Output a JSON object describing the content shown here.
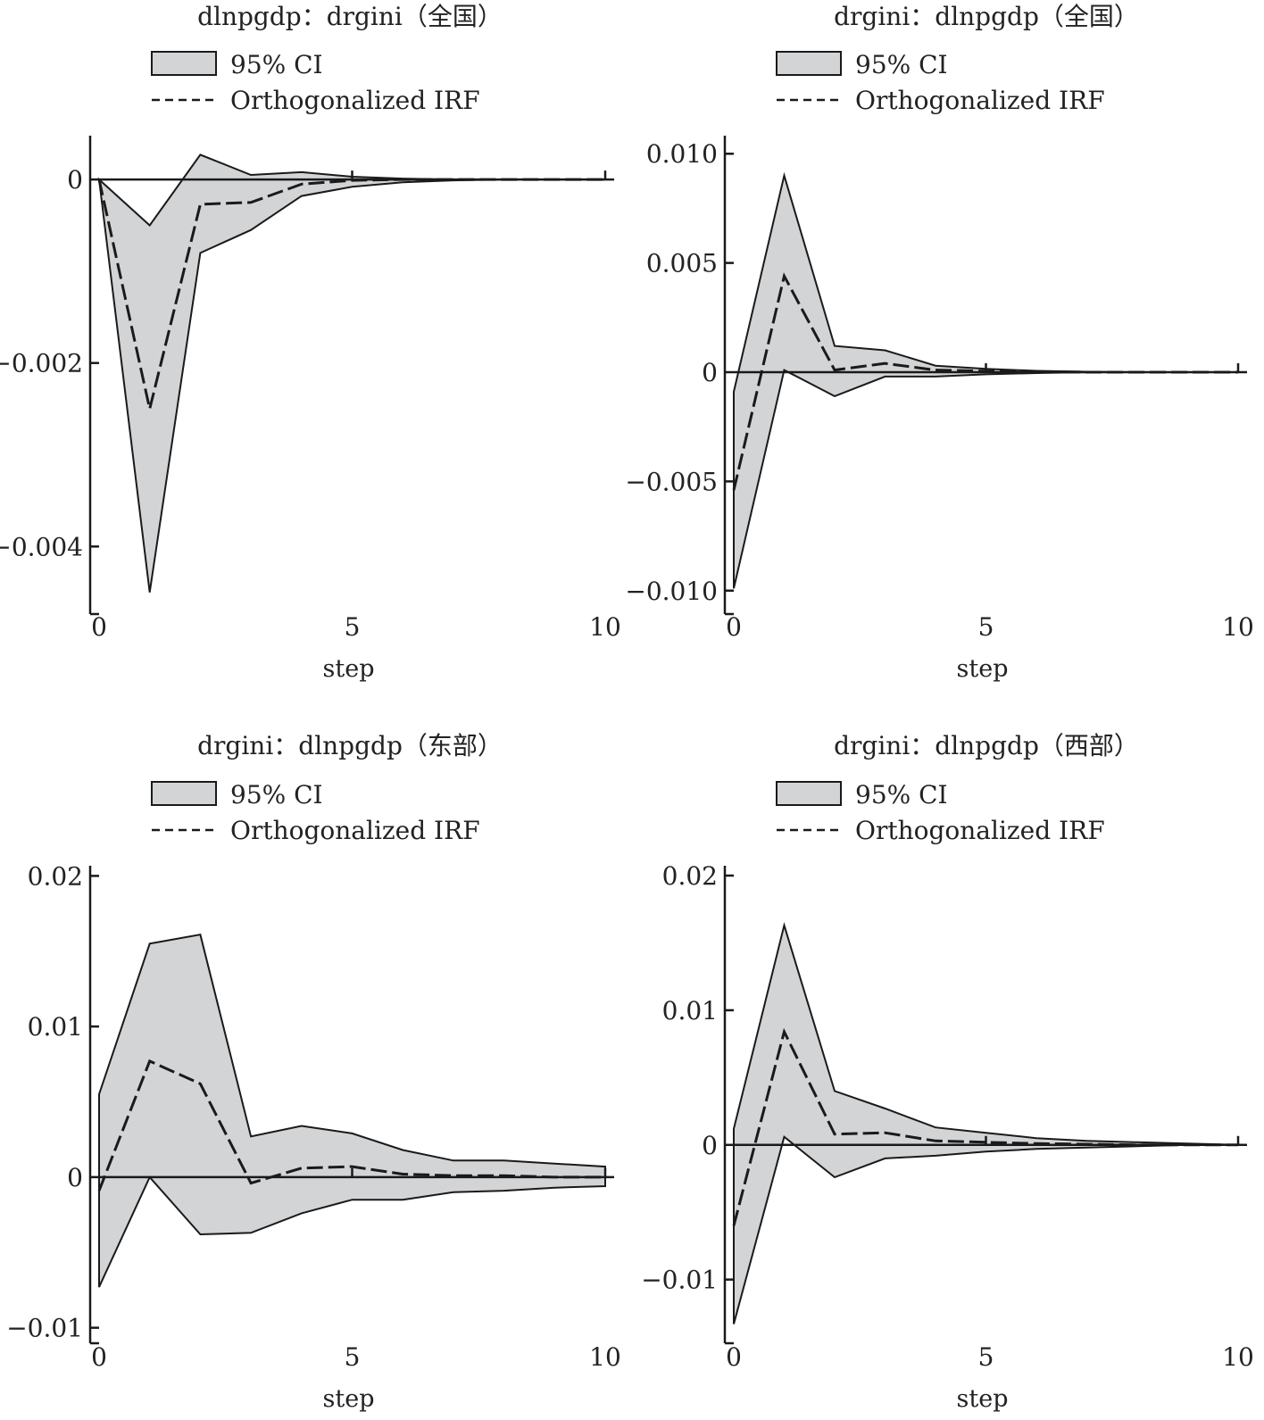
{
  "chart_data": [
    {
      "type": "area",
      "title": "dlnpgdp：drgini（全国）",
      "xlabel": "step",
      "ylabel": "",
      "legend": {
        "ci_label": "95% CI",
        "line_label": "Orthogonalized IRF",
        "placement": "top-left"
      },
      "xlim": [
        0,
        10
      ],
      "ylim": [
        -0.0046,
        0.0004
      ],
      "xticks": [
        0,
        5,
        10
      ],
      "xtick_labels": [
        "0",
        "5",
        "10"
      ],
      "yticks": [
        0,
        -0.002,
        -0.004
      ],
      "ytick_labels": [
        "0",
        "−0.002",
        "−0.004"
      ],
      "x": [
        0,
        1,
        2,
        3,
        4,
        5,
        6,
        7,
        8,
        9,
        10
      ],
      "series": [
        {
          "name": "Orthogonalized IRF",
          "values": [
            0,
            -0.0025,
            -0.00027,
            -0.00025,
            -5e-05,
            -1e-05,
            0,
            0,
            0,
            0,
            0
          ]
        },
        {
          "name": "95% CI",
          "lower": [
            0,
            -0.0045,
            -0.0008,
            -0.00055,
            -0.00018,
            -8e-05,
            -3e-05,
            -1e-05,
            0,
            0,
            0
          ],
          "upper": [
            0,
            -0.0005,
            0.00027,
            5e-05,
            8e-05,
            3e-05,
            1e-05,
            0,
            0,
            0,
            0
          ]
        }
      ]
    },
    {
      "type": "area",
      "title": "drgini：dlnpgdp（全国）",
      "xlabel": "step",
      "ylabel": "",
      "legend": {
        "ci_label": "95% CI",
        "line_label": "Orthogonalized IRF",
        "placement": "top-left"
      },
      "xlim": [
        0,
        10
      ],
      "ylim": [
        -0.0105,
        0.0105
      ],
      "xticks": [
        0,
        5,
        10
      ],
      "xtick_labels": [
        "0",
        "5",
        "10"
      ],
      "yticks": [
        0.01,
        0.005,
        0,
        -0.005,
        -0.01
      ],
      "ytick_labels": [
        "0.010",
        "0.005",
        "0",
        "−0.005",
        "−0.010"
      ],
      "x": [
        0,
        1,
        2,
        3,
        4,
        5,
        6,
        7,
        8,
        9,
        10
      ],
      "series": [
        {
          "name": "Orthogonalized IRF",
          "values": [
            -0.0054,
            0.0044,
            0.0001,
            0.0004,
            0.0001,
            5e-05,
            2e-05,
            0,
            0,
            0,
            0
          ]
        },
        {
          "name": "95% CI",
          "lower": [
            -0.0099,
            0.0001,
            -0.0011,
            -0.0002,
            -0.0002,
            -0.0001,
            -4e-05,
            0,
            0,
            0,
            0
          ],
          "upper": [
            -0.0009,
            0.009,
            0.0012,
            0.001,
            0.0003,
            0.00015,
            6e-05,
            2e-05,
            0,
            0,
            0
          ]
        }
      ]
    },
    {
      "type": "area",
      "title": "drgini：dlnpgdp（东部）",
      "xlabel": "step",
      "ylabel": "",
      "legend": {
        "ci_label": "95% CI",
        "line_label": "Orthogonalized IRF",
        "placement": "top-left"
      },
      "xlim": [
        0,
        10
      ],
      "ylim": [
        -0.0102,
        0.0202
      ],
      "xticks": [
        0,
        5,
        10
      ],
      "xtick_labels": [
        "0",
        "5",
        "10"
      ],
      "yticks": [
        0.02,
        0.01,
        0,
        -0.01
      ],
      "ytick_labels": [
        "0.02",
        "0.01",
        "0",
        "−0.01"
      ],
      "x": [
        0,
        1,
        2,
        3,
        4,
        5,
        6,
        7,
        8,
        9,
        10
      ],
      "series": [
        {
          "name": "Orthogonalized IRF",
          "values": [
            -0.0009,
            0.0077,
            0.0062,
            -0.0004,
            0.0006,
            0.0007,
            0.0002,
            0.0001,
            0.0001,
            0,
            0
          ]
        },
        {
          "name": "95% CI",
          "lower": [
            -0.0073,
            0,
            -0.0038,
            -0.0037,
            -0.0024,
            -0.0015,
            -0.0015,
            -0.001,
            -0.0009,
            -0.0007,
            -0.0006
          ],
          "upper": [
            0.0055,
            0.0155,
            0.0161,
            0.0027,
            0.0034,
            0.0029,
            0.0018,
            0.0011,
            0.0011,
            0.0009,
            0.0007
          ]
        }
      ]
    },
    {
      "type": "area",
      "title": "drgini：dlnpgdp（西部）",
      "xlabel": "step",
      "ylabel": "",
      "legend": {
        "ci_label": "95% CI",
        "line_label": "Orthogonalized IRF",
        "placement": "top-left"
      },
      "xlim": [
        0,
        10
      ],
      "ylim": [
        -0.0138,
        0.0202
      ],
      "xticks": [
        0,
        5,
        10
      ],
      "xtick_labels": [
        "0",
        "5",
        "10"
      ],
      "yticks": [
        0.02,
        0.01,
        0,
        -0.01
      ],
      "ytick_labels": [
        "0.02",
        "0.01",
        "0",
        "−0.01"
      ],
      "x": [
        0,
        1,
        2,
        3,
        4,
        5,
        6,
        7,
        8,
        9,
        10
      ],
      "series": [
        {
          "name": "Orthogonalized IRF",
          "values": [
            -0.006,
            0.0084,
            0.0008,
            0.0009,
            0.0003,
            0.0002,
            0.0001,
            5e-05,
            0,
            0,
            0
          ]
        },
        {
          "name": "95% CI",
          "lower": [
            -0.0133,
            0.0006,
            -0.0024,
            -0.001,
            -0.0008,
            -0.0005,
            -0.0003,
            -0.0002,
            -0.0001,
            0,
            0
          ],
          "upper": [
            0.0012,
            0.0163,
            0.004,
            0.0027,
            0.0013,
            0.0009,
            0.0005,
            0.0003,
            0.0002,
            0.0001,
            0
          ]
        }
      ]
    }
  ],
  "style": {
    "band_fill": "#d3d4d6",
    "line_color": "#1a1a1a",
    "text_color": "#222222",
    "background": "#ffffff"
  }
}
